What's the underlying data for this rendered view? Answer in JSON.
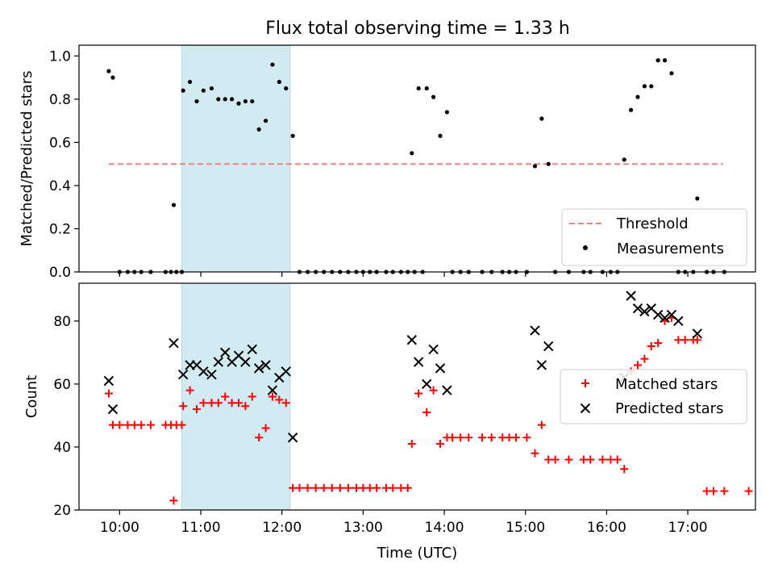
{
  "figure": {
    "title": "Flux total observing time = 1.33 h"
  },
  "colors": {
    "highlight": "#add8e6",
    "threshold": "#f08080",
    "matched": "#ff0000",
    "predicted": "#000000",
    "measurement": "#000000"
  },
  "chart_data": [
    {
      "type": "scatter",
      "panel": "top",
      "title": "Flux total observing time = 1.33 h",
      "xlabel": "",
      "ylabel": "Matched/Predicted stars",
      "xlim": [
        "09:30",
        "17:50"
      ],
      "ylim": [
        0,
        1.05
      ],
      "y_ticks": [
        "0.0",
        "0.2",
        "0.4",
        "0.6",
        "0.8",
        "1.0"
      ],
      "highlight_span": {
        "x": [
          "10:46",
          "12:06"
        ]
      },
      "threshold": {
        "name": "Threshold",
        "value": 0.5,
        "x": [
          "09:52",
          "17:26"
        ]
      },
      "legend": {
        "entries": [
          "Threshold",
          "Measurements"
        ],
        "position": "lower-right"
      },
      "series": [
        {
          "name": "Measurements",
          "points": [
            [
              "09:52",
              0.93
            ],
            [
              "09:55",
              0.9
            ],
            [
              "10:00",
              0.0
            ],
            [
              "10:06",
              0.0
            ],
            [
              "10:11",
              0.0
            ],
            [
              "10:16",
              0.0
            ],
            [
              "10:23",
              0.0
            ],
            [
              "10:34",
              0.0
            ],
            [
              "10:38",
              0.0
            ],
            [
              "10:42",
              0.0
            ],
            [
              "10:46",
              0.0
            ],
            [
              "10:40",
              0.31
            ],
            [
              "10:47",
              0.84
            ],
            [
              "10:52",
              0.88
            ],
            [
              "10:57",
              0.79
            ],
            [
              "11:02",
              0.84
            ],
            [
              "11:08",
              0.85
            ],
            [
              "11:13",
              0.8
            ],
            [
              "11:18",
              0.8
            ],
            [
              "11:23",
              0.8
            ],
            [
              "11:28",
              0.78
            ],
            [
              "11:33",
              0.79
            ],
            [
              "11:38",
              0.79
            ],
            [
              "11:43",
              0.66
            ],
            [
              "11:48",
              0.7
            ],
            [
              "11:53",
              0.96
            ],
            [
              "11:58",
              0.88
            ],
            [
              "12:03",
              0.85
            ],
            [
              "12:08",
              0.63
            ],
            [
              "12:13",
              0.0
            ],
            [
              "12:19",
              0.0
            ],
            [
              "12:25",
              0.0
            ],
            [
              "12:31",
              0.0
            ],
            [
              "12:37",
              0.0
            ],
            [
              "12:43",
              0.0
            ],
            [
              "12:49",
              0.0
            ],
            [
              "12:55",
              0.0
            ],
            [
              "13:00",
              0.0
            ],
            [
              "13:05",
              0.0
            ],
            [
              "13:10",
              0.0
            ],
            [
              "13:17",
              0.0
            ],
            [
              "13:22",
              0.0
            ],
            [
              "13:28",
              0.0
            ],
            [
              "13:33",
              0.0
            ],
            [
              "13:38",
              0.0
            ],
            [
              "13:44",
              0.0
            ],
            [
              "13:36",
              0.55
            ],
            [
              "13:41",
              0.85
            ],
            [
              "13:47",
              0.85
            ],
            [
              "13:52",
              0.81
            ],
            [
              "13:57",
              0.63
            ],
            [
              "14:02",
              0.74
            ],
            [
              "14:06",
              0.0
            ],
            [
              "14:12",
              0.0
            ],
            [
              "14:18",
              0.0
            ],
            [
              "14:28",
              0.0
            ],
            [
              "14:35",
              0.0
            ],
            [
              "14:43",
              0.0
            ],
            [
              "14:48",
              0.0
            ],
            [
              "14:53",
              0.0
            ],
            [
              "15:01",
              0.0
            ],
            [
              "15:07",
              0.49
            ],
            [
              "15:12",
              0.71
            ],
            [
              "15:17",
              0.5
            ],
            [
              "15:22",
              0.0
            ],
            [
              "15:32",
              0.0
            ],
            [
              "15:43",
              0.0
            ],
            [
              "15:48",
              0.0
            ],
            [
              "15:57",
              0.0
            ],
            [
              "16:03",
              0.0
            ],
            [
              "16:08",
              0.0
            ],
            [
              "16:13",
              0.52
            ],
            [
              "16:18",
              0.75
            ],
            [
              "16:23",
              0.81
            ],
            [
              "16:28",
              0.86
            ],
            [
              "16:33",
              0.86
            ],
            [
              "16:38",
              0.98
            ],
            [
              "16:43",
              0.98
            ],
            [
              "16:48",
              0.92
            ],
            [
              "16:53",
              0.0
            ],
            [
              "16:58",
              0.0
            ],
            [
              "17:04",
              0.0
            ],
            [
              "17:07",
              0.34
            ],
            [
              "17:14",
              0.0
            ],
            [
              "17:19",
              0.0
            ],
            [
              "17:27",
              0.0
            ]
          ]
        }
      ]
    },
    {
      "type": "scatter",
      "panel": "bottom",
      "title": "",
      "xlabel": "Time (UTC)",
      "ylabel": "Count",
      "xlim": [
        "09:30",
        "17:50"
      ],
      "ylim": [
        20,
        92
      ],
      "x_ticks": [
        "10:00",
        "11:00",
        "12:00",
        "13:00",
        "14:00",
        "15:00",
        "16:00",
        "17:00"
      ],
      "y_ticks": [
        "20",
        "40",
        "60",
        "80"
      ],
      "highlight_span": {
        "x": [
          "10:46",
          "12:06"
        ]
      },
      "legend": {
        "entries": [
          "Matched stars",
          "Predicted stars"
        ],
        "position": "center-right"
      },
      "series": [
        {
          "name": "Matched stars",
          "marker": "plus",
          "points": [
            [
              "09:52",
              57
            ],
            [
              "09:55",
              47
            ],
            [
              "10:00",
              47
            ],
            [
              "10:06",
              47
            ],
            [
              "10:11",
              47
            ],
            [
              "10:16",
              47
            ],
            [
              "10:23",
              47
            ],
            [
              "10:34",
              47
            ],
            [
              "10:38",
              47
            ],
            [
              "10:42",
              47
            ],
            [
              "10:46",
              47
            ],
            [
              "10:40",
              23
            ],
            [
              "10:47",
              53
            ],
            [
              "10:52",
              58
            ],
            [
              "10:57",
              52
            ],
            [
              "11:02",
              54
            ],
            [
              "11:08",
              54
            ],
            [
              "11:13",
              54
            ],
            [
              "11:18",
              56
            ],
            [
              "11:23",
              54
            ],
            [
              "11:28",
              54
            ],
            [
              "11:33",
              53
            ],
            [
              "11:38",
              56
            ],
            [
              "11:43",
              43
            ],
            [
              "11:48",
              46
            ],
            [
              "11:53",
              56
            ],
            [
              "11:58",
              55
            ],
            [
              "12:03",
              54
            ],
            [
              "12:08",
              27
            ],
            [
              "12:13",
              27
            ],
            [
              "12:19",
              27
            ],
            [
              "12:25",
              27
            ],
            [
              "12:31",
              27
            ],
            [
              "12:37",
              27
            ],
            [
              "12:43",
              27
            ],
            [
              "12:49",
              27
            ],
            [
              "12:55",
              27
            ],
            [
              "13:00",
              27
            ],
            [
              "13:05",
              27
            ],
            [
              "13:10",
              27
            ],
            [
              "13:17",
              27
            ],
            [
              "13:22",
              27
            ],
            [
              "13:28",
              27
            ],
            [
              "13:33",
              27
            ],
            [
              "13:36",
              41
            ],
            [
              "13:41",
              57
            ],
            [
              "13:47",
              51
            ],
            [
              "13:52",
              58
            ],
            [
              "13:57",
              41
            ],
            [
              "14:02",
              43
            ],
            [
              "14:06",
              43
            ],
            [
              "14:12",
              43
            ],
            [
              "14:18",
              43
            ],
            [
              "14:28",
              43
            ],
            [
              "14:35",
              43
            ],
            [
              "14:43",
              43
            ],
            [
              "14:48",
              43
            ],
            [
              "14:53",
              43
            ],
            [
              "15:01",
              43
            ],
            [
              "15:07",
              38
            ],
            [
              "15:12",
              47
            ],
            [
              "15:17",
              36
            ],
            [
              "15:22",
              36
            ],
            [
              "15:32",
              36
            ],
            [
              "15:43",
              36
            ],
            [
              "15:48",
              36
            ],
            [
              "15:57",
              36
            ],
            [
              "16:03",
              36
            ],
            [
              "16:08",
              36
            ],
            [
              "16:13",
              33
            ],
            [
              "16:18",
              64
            ],
            [
              "16:23",
              66
            ],
            [
              "16:28",
              68
            ],
            [
              "16:33",
              72
            ],
            [
              "16:38",
              73
            ],
            [
              "16:43",
              80
            ],
            [
              "16:48",
              81
            ],
            [
              "16:53",
              74
            ],
            [
              "16:58",
              74
            ],
            [
              "17:04",
              74
            ],
            [
              "17:07",
              74
            ],
            [
              "17:14",
              26
            ],
            [
              "17:19",
              26
            ],
            [
              "17:27",
              26
            ],
            [
              "17:45",
              26
            ]
          ]
        },
        {
          "name": "Predicted stars",
          "marker": "x",
          "points": [
            [
              "09:52",
              61
            ],
            [
              "09:55",
              52
            ],
            [
              "10:40",
              73
            ],
            [
              "10:47",
              63
            ],
            [
              "10:52",
              66
            ],
            [
              "10:57",
              66
            ],
            [
              "11:02",
              64
            ],
            [
              "11:08",
              63
            ],
            [
              "11:13",
              67
            ],
            [
              "11:18",
              70
            ],
            [
              "11:23",
              67
            ],
            [
              "11:28",
              69
            ],
            [
              "11:33",
              67
            ],
            [
              "11:38",
              71
            ],
            [
              "11:43",
              65
            ],
            [
              "11:48",
              66
            ],
            [
              "11:53",
              58
            ],
            [
              "11:58",
              62
            ],
            [
              "12:03",
              64
            ],
            [
              "12:08",
              43
            ],
            [
              "13:36",
              74
            ],
            [
              "13:41",
              67
            ],
            [
              "13:47",
              60
            ],
            [
              "13:52",
              71
            ],
            [
              "13:57",
              65
            ],
            [
              "14:02",
              58
            ],
            [
              "15:07",
              77
            ],
            [
              "15:12",
              66
            ],
            [
              "15:17",
              72
            ],
            [
              "16:13",
              62
            ],
            [
              "16:18",
              88
            ],
            [
              "16:23",
              84
            ],
            [
              "16:28",
              83
            ],
            [
              "16:33",
              84
            ],
            [
              "16:38",
              82
            ],
            [
              "16:43",
              81
            ],
            [
              "16:48",
              82
            ],
            [
              "16:53",
              80
            ],
            [
              "17:07",
              76
            ]
          ]
        }
      ]
    }
  ]
}
